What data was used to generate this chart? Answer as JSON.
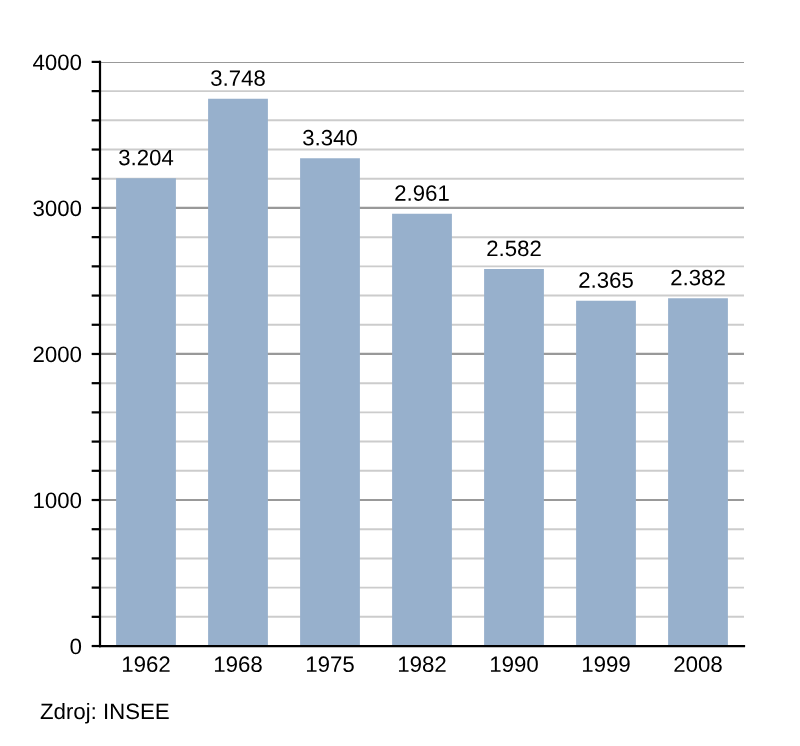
{
  "chart_data": {
    "type": "bar",
    "categories": [
      "1962",
      "1968",
      "1975",
      "1982",
      "1990",
      "1999",
      "2008"
    ],
    "values": [
      3204,
      3748,
      3340,
      2961,
      2582,
      2365,
      2382
    ],
    "value_labels": [
      "3.204",
      "3.748",
      "3.340",
      "2.961",
      "2.582",
      "2.365",
      "2.382"
    ],
    "color": "#97b0cc",
    "ylim": [
      0,
      4000
    ],
    "yticks": [
      0,
      {
        "value": 200,
        "label": null
      },
      {
        "value": 400,
        "label": null
      },
      {
        "value": 600,
        "label": null
      },
      {
        "value": 800,
        "label": null
      },
      1000,
      {
        "value": 1200,
        "label": null
      },
      {
        "value": 1400,
        "label": null
      },
      {
        "value": 1600,
        "label": null
      },
      {
        "value": 1800,
        "label": null
      },
      2000,
      {
        "value": 2200,
        "label": null
      },
      {
        "value": 2400,
        "label": null
      },
      {
        "value": 2600,
        "label": null
      },
      {
        "value": 2800,
        "label": null
      },
      3000,
      {
        "value": 3200,
        "label": null
      },
      {
        "value": 3400,
        "label": null
      },
      {
        "value": 3600,
        "label": null
      },
      {
        "value": 3800,
        "label": null
      },
      4000
    ],
    "grid": "y",
    "annotations": [
      "Zdroj: INSEE"
    ]
  }
}
